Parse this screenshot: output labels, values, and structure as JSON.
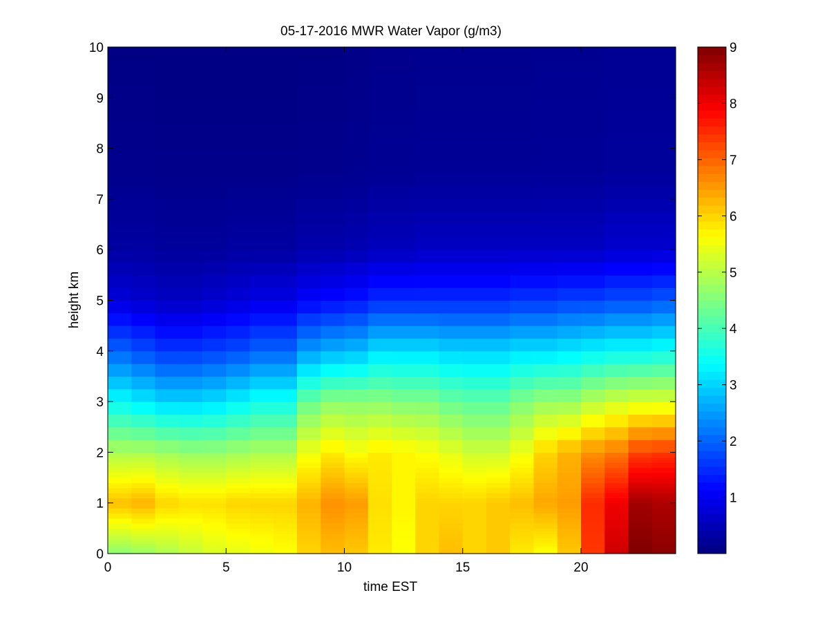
{
  "chart_data": {
    "type": "heatmap",
    "title": "05-17-2016 MWR Water Vapor (g/m3)",
    "xlabel": "time EST",
    "ylabel": "height km",
    "xlim": [
      0,
      24
    ],
    "ylim": [
      0,
      10
    ],
    "x_ticks": [
      0,
      5,
      10,
      15,
      20
    ],
    "y_ticks": [
      0,
      1,
      2,
      3,
      4,
      5,
      6,
      7,
      8,
      9,
      10
    ],
    "colorbar": {
      "colormap": "jet",
      "range": [
        0,
        9
      ],
      "ticks": [
        1,
        2,
        3,
        4,
        5,
        6,
        7,
        8,
        9
      ]
    },
    "time_hours": [
      0,
      1,
      2,
      3,
      4,
      5,
      6,
      7,
      8,
      9,
      10,
      11,
      12,
      13,
      14,
      15,
      16,
      17,
      18,
      19,
      20,
      21,
      22,
      23
    ],
    "time_cell_width_hours": 1,
    "height_km": [
      0.0,
      0.05,
      0.1,
      0.15,
      0.2,
      0.25,
      0.3,
      0.35,
      0.4,
      0.45,
      0.5,
      0.6,
      0.7,
      0.8,
      0.9,
      1.0,
      1.1,
      1.2,
      1.3,
      1.4,
      1.5,
      1.6,
      1.7,
      1.8,
      1.9,
      2.0,
      2.25,
      2.5,
      2.75,
      3.0,
      3.25,
      3.5,
      3.75,
      4.0,
      4.25,
      4.5,
      4.75,
      5.0,
      5.25,
      5.5,
      5.75,
      6.0,
      6.25,
      6.5,
      6.75,
      7.0,
      7.25,
      7.5,
      7.75,
      8.0,
      8.25,
      8.5,
      8.75,
      9.0,
      9.25,
      9.5,
      9.75
    ],
    "profiles": [
      {
        "time": 0,
        "surface": 4.6,
        "z1": 6.2,
        "z2": 4.9,
        "z3": 3.4,
        "z4": 2.0,
        "z5": 0.8,
        "z6": 0.3,
        "z7": 0.12
      },
      {
        "time": 1,
        "surface": 4.7,
        "z1": 6.3,
        "z2": 4.9,
        "z3": 3.2,
        "z4": 1.8,
        "z5": 0.7,
        "z6": 0.3,
        "z7": 0.12
      },
      {
        "time": 2,
        "surface": 4.9,
        "z1": 6.0,
        "z2": 4.8,
        "z3": 3.0,
        "z4": 1.6,
        "z5": 0.6,
        "z6": 0.25,
        "z7": 0.1
      },
      {
        "time": 3,
        "surface": 5.1,
        "z1": 5.9,
        "z2": 4.7,
        "z3": 3.0,
        "z4": 1.6,
        "z5": 0.6,
        "z6": 0.25,
        "z7": 0.1
      },
      {
        "time": 4,
        "surface": 5.3,
        "z1": 5.9,
        "z2": 4.7,
        "z3": 3.1,
        "z4": 1.7,
        "z5": 0.7,
        "z6": 0.25,
        "z7": 0.1
      },
      {
        "time": 5,
        "surface": 5.4,
        "z1": 6.0,
        "z2": 4.8,
        "z3": 3.3,
        "z4": 1.8,
        "z5": 0.8,
        "z6": 0.3,
        "z7": 0.1
      },
      {
        "time": 6,
        "surface": 5.5,
        "z1": 6.0,
        "z2": 4.9,
        "z3": 3.5,
        "z4": 2.0,
        "z5": 0.9,
        "z6": 0.3,
        "z7": 0.1
      },
      {
        "time": 7,
        "surface": 5.6,
        "z1": 6.0,
        "z2": 4.9,
        "z3": 3.5,
        "z4": 2.0,
        "z5": 0.9,
        "z6": 0.3,
        "z7": 0.1
      },
      {
        "time": 8,
        "surface": 6.0,
        "z1": 6.3,
        "z2": 5.5,
        "z3": 4.3,
        "z4": 2.5,
        "z5": 1.1,
        "z6": 0.4,
        "z7": 0.12
      },
      {
        "time": 9,
        "surface": 6.2,
        "z1": 6.6,
        "z2": 5.8,
        "z3": 4.6,
        "z4": 2.7,
        "z5": 1.2,
        "z6": 0.4,
        "z7": 0.12
      },
      {
        "time": 10,
        "surface": 6.1,
        "z1": 6.5,
        "z2": 5.6,
        "z3": 4.6,
        "z4": 2.8,
        "z5": 1.3,
        "z6": 0.45,
        "z7": 0.15
      },
      {
        "time": 11,
        "surface": 5.8,
        "z1": 5.9,
        "z2": 5.8,
        "z3": 4.6,
        "z4": 3.1,
        "z5": 1.5,
        "z6": 0.55,
        "z7": 0.18
      },
      {
        "time": 12,
        "surface": 5.6,
        "z1": 5.7,
        "z2": 5.7,
        "z3": 4.5,
        "z4": 3.1,
        "z5": 1.5,
        "z6": 0.55,
        "z7": 0.18
      },
      {
        "time": 13,
        "surface": 6.0,
        "z1": 6.0,
        "z2": 5.6,
        "z3": 4.5,
        "z4": 3.1,
        "z5": 1.5,
        "z6": 0.6,
        "z7": 0.2
      },
      {
        "time": 14,
        "surface": 6.2,
        "z1": 6.0,
        "z2": 5.4,
        "z3": 4.3,
        "z4": 3.0,
        "z5": 1.5,
        "z6": 0.6,
        "z7": 0.2
      },
      {
        "time": 15,
        "surface": 6.0,
        "z1": 6.0,
        "z2": 5.2,
        "z3": 4.2,
        "z4": 3.0,
        "z5": 1.5,
        "z6": 0.6,
        "z7": 0.2
      },
      {
        "time": 16,
        "surface": 6.1,
        "z1": 6.1,
        "z2": 5.2,
        "z3": 4.2,
        "z4": 3.0,
        "z5": 1.5,
        "z6": 0.6,
        "z7": 0.2
      },
      {
        "time": 17,
        "surface": 5.8,
        "z1": 6.2,
        "z2": 5.5,
        "z3": 4.5,
        "z4": 3.1,
        "z5": 1.6,
        "z6": 0.6,
        "z7": 0.2
      },
      {
        "time": 18,
        "surface": 5.6,
        "z1": 6.4,
        "z2": 6.0,
        "z3": 4.7,
        "z4": 3.1,
        "z5": 1.6,
        "z6": 0.6,
        "z7": 0.22
      },
      {
        "time": 19,
        "surface": 6.1,
        "z1": 6.5,
        "z2": 6.3,
        "z3": 4.7,
        "z4": 3.2,
        "z5": 1.7,
        "z6": 0.6,
        "z7": 0.22
      },
      {
        "time": 20,
        "surface": 7.4,
        "z1": 7.5,
        "z2": 6.6,
        "z3": 5.0,
        "z4": 3.3,
        "z5": 1.7,
        "z6": 0.6,
        "z7": 0.22
      },
      {
        "time": 21,
        "surface": 8.3,
        "z1": 8.0,
        "z2": 6.8,
        "z3": 5.2,
        "z4": 3.4,
        "z5": 1.8,
        "z6": 0.7,
        "z7": 0.25
      },
      {
        "time": 22,
        "surface": 9.0,
        "z1": 8.7,
        "z2": 7.3,
        "z3": 5.3,
        "z4": 3.4,
        "z5": 1.8,
        "z6": 0.7,
        "z7": 0.25
      },
      {
        "time": 23,
        "surface": 8.9,
        "z1": 8.6,
        "z2": 7.4,
        "z3": 5.3,
        "z4": 3.5,
        "z5": 1.9,
        "z6": 0.7,
        "z7": 0.25
      }
    ],
    "profile_levels_km": {
      "surface": 0.0,
      "z1": 1.0,
      "z2": 2.0,
      "z3": 3.0,
      "z4": 4.0,
      "z5": 5.0,
      "z6": 6.0,
      "z7": 7.5
    }
  }
}
